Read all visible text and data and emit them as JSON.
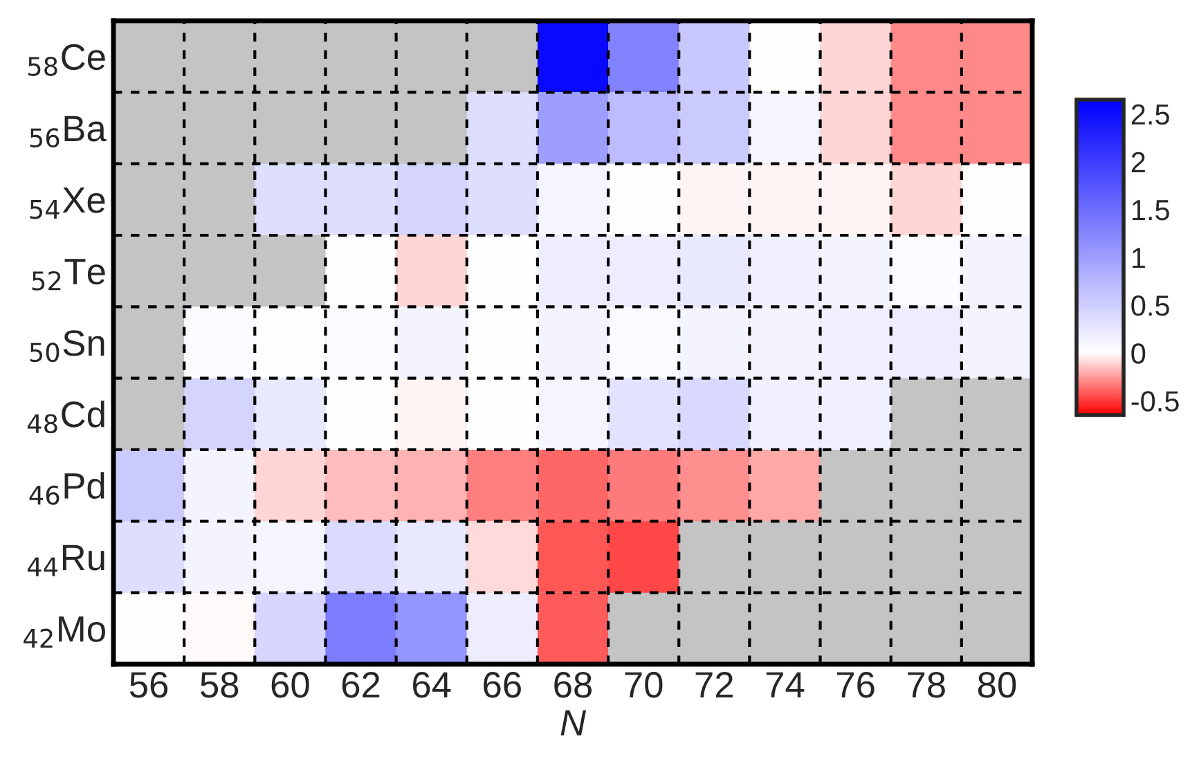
{
  "chart_data": {
    "type": "heatmap",
    "xlabel": "N",
    "categories": [
      "56",
      "58",
      "60",
      "62",
      "64",
      "66",
      "68",
      "70",
      "72",
      "74",
      "76",
      "78",
      "80"
    ],
    "y_categories": [
      "$_{58}$Ce",
      "$_{56}$Ba",
      "$_{54}$Xe",
      "$_{52}$Te",
      "$_{50}$Sn",
      "$_{48}$Cd",
      "$_{46}$Pd",
      "$_{44}$Ru",
      "$_{42}$Mo"
    ],
    "cells": [
      [
        null,
        null,
        null,
        null,
        null,
        null,
        2.55,
        1.3,
        0.57,
        0.02,
        -0.1,
        -0.3,
        -0.3
      ],
      [
        null,
        null,
        null,
        null,
        null,
        0.35,
        1.0,
        0.7,
        0.55,
        0.1,
        -0.1,
        -0.3,
        -0.3
      ],
      [
        null,
        null,
        0.35,
        0.35,
        0.45,
        0.35,
        0.1,
        0.0,
        -0.03,
        -0.03,
        -0.03,
        -0.1,
        0.0
      ],
      [
        null,
        null,
        null,
        0.0,
        -0.1,
        0.02,
        0.2,
        0.2,
        0.25,
        0.15,
        0.12,
        0.05,
        0.12
      ],
      [
        null,
        0.05,
        0.03,
        0.05,
        0.12,
        0.02,
        0.12,
        0.05,
        0.12,
        0.12,
        0.15,
        0.2,
        0.12
      ],
      [
        null,
        0.45,
        0.25,
        0.02,
        -0.03,
        0.0,
        0.1,
        0.3,
        0.4,
        0.15,
        0.15,
        null,
        null
      ],
      [
        0.55,
        0.12,
        -0.1,
        -0.17,
        -0.19,
        -0.32,
        -0.39,
        -0.34,
        -0.28,
        -0.22,
        null,
        null,
        null
      ],
      [
        0.35,
        0.12,
        0.1,
        0.38,
        0.25,
        -0.09,
        -0.42,
        -0.46,
        null,
        null,
        null,
        null,
        null
      ],
      [
        0.03,
        -0.01,
        0.42,
        1.35,
        1.1,
        0.2,
        -0.41,
        null,
        null,
        null,
        null,
        null,
        null
      ]
    ],
    "clim": [
      -0.65,
      2.65
    ],
    "cticks": [
      -0.5,
      0,
      0.5,
      1,
      1.5,
      2,
      2.5
    ],
    "grid": true
  }
}
